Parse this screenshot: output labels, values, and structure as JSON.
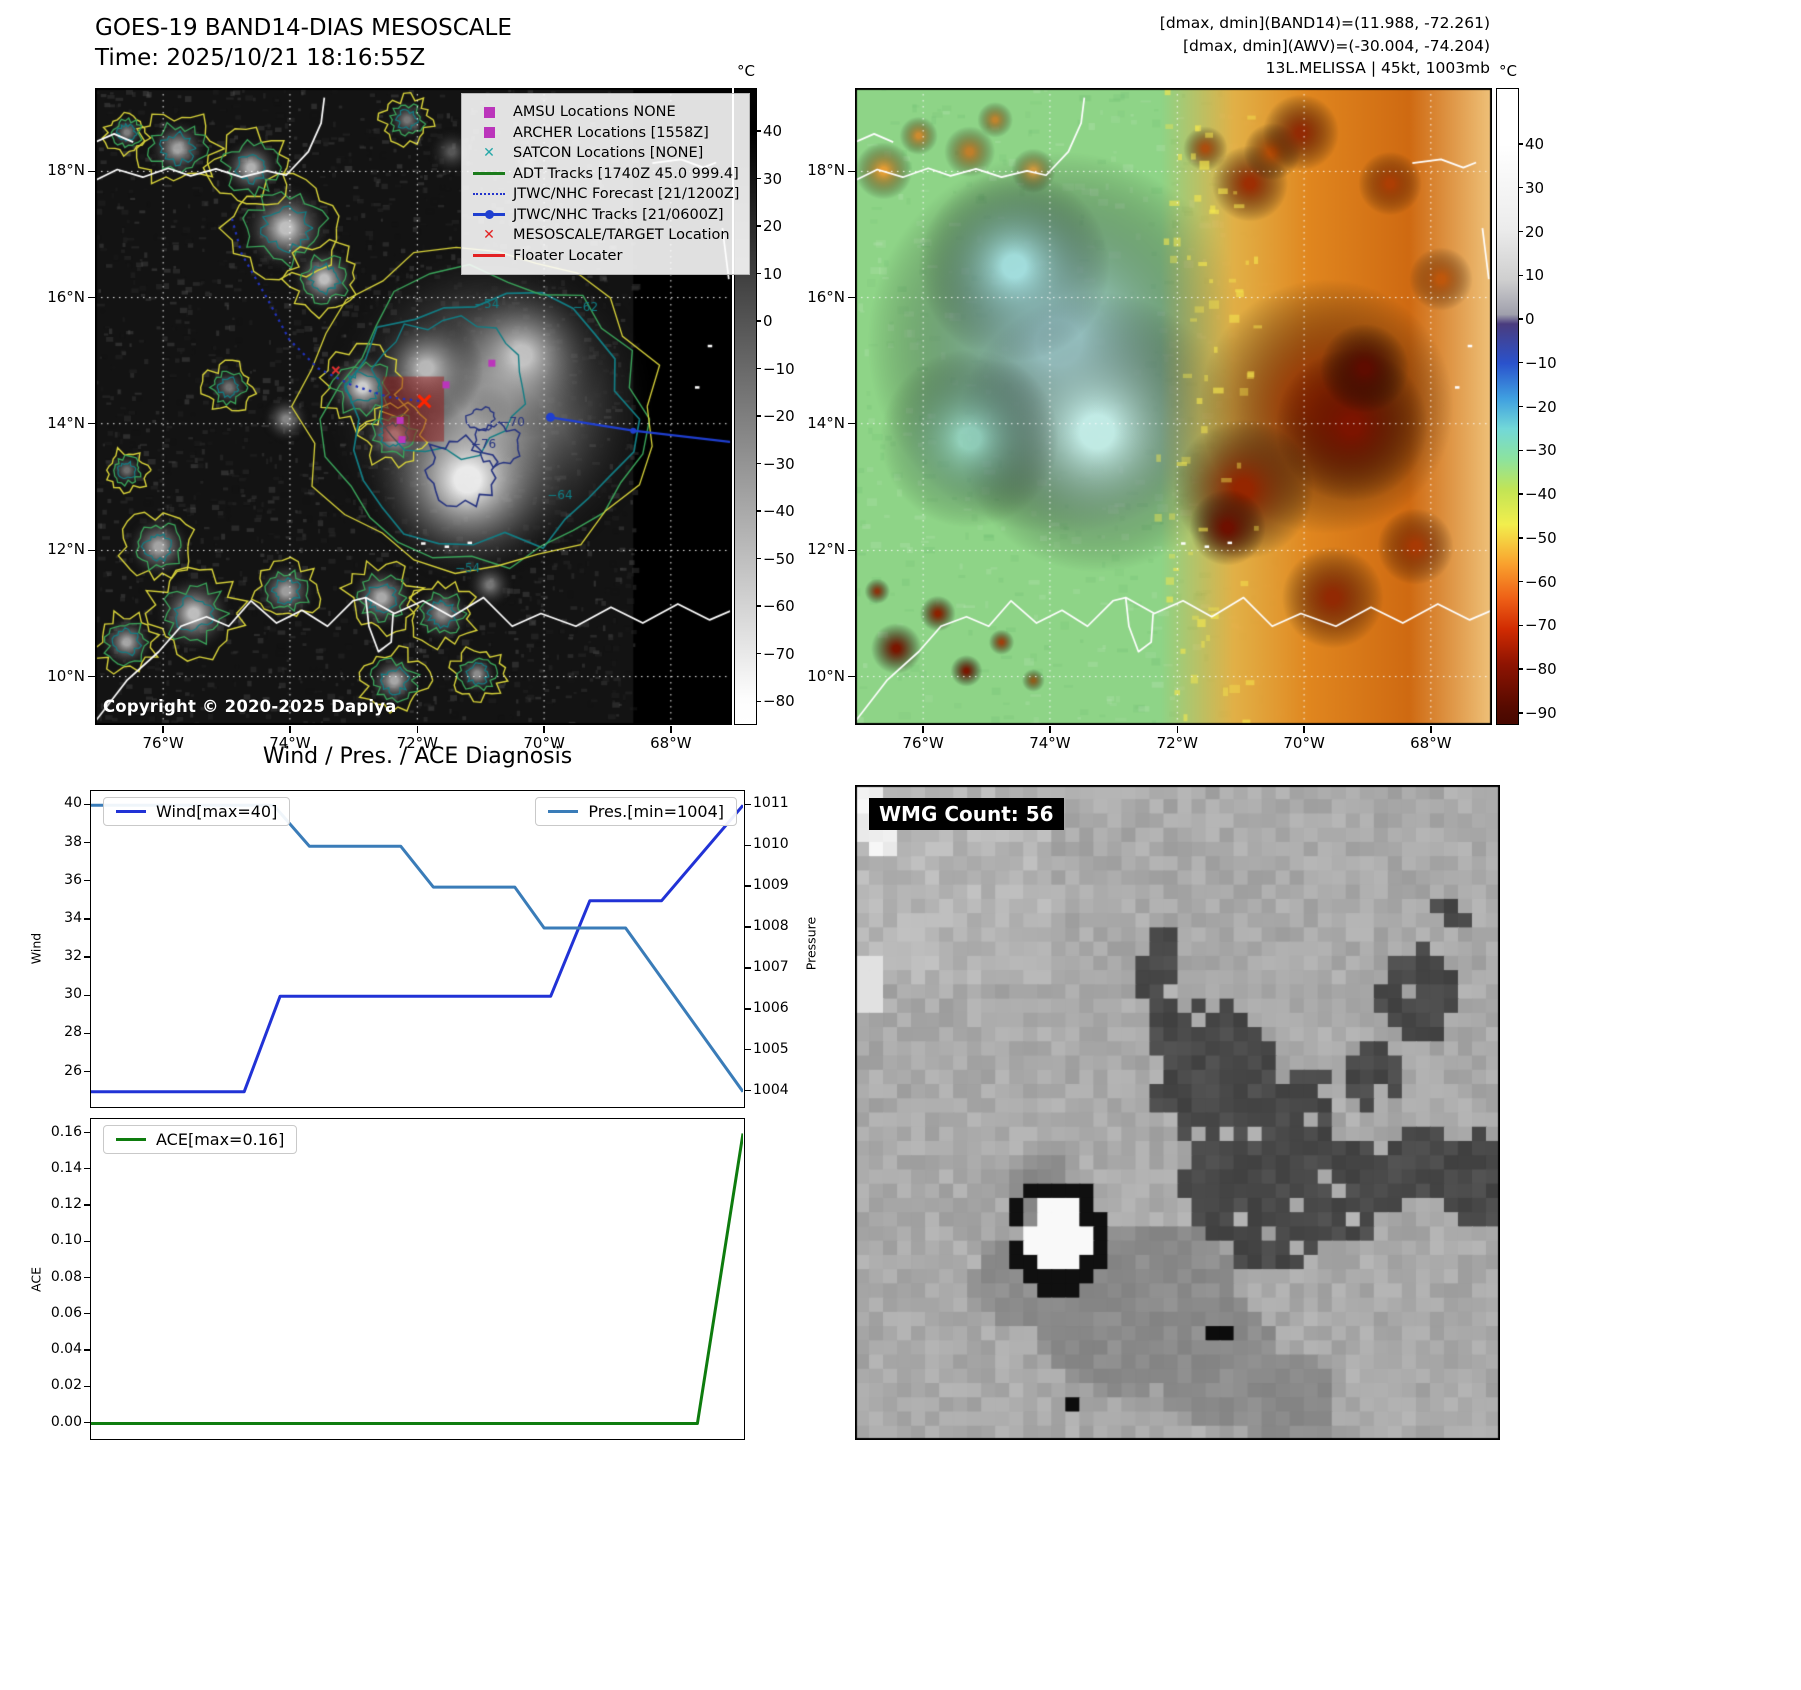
{
  "chart_data": [
    {
      "type": "line",
      "title": "Wind / Pres. / ACE Diagnosis",
      "xlabel": "",
      "ylabel_left": "Wind",
      "ylabel_right": "Pressure",
      "ylim_left": [
        24.25,
        40.75
      ],
      "ylim_right": [
        1003.65,
        1011.35
      ],
      "yticks_left": [
        26,
        28,
        30,
        32,
        34,
        36,
        38,
        40
      ],
      "yticks_right": [
        1004,
        1005,
        1006,
        1007,
        1008,
        1009,
        1010,
        1011
      ],
      "grid": false,
      "legend_position": "upper left / upper right",
      "series": [
        {
          "name": "Wind[max=40]",
          "axis": "left",
          "color": "#2132d6",
          "points": [
            [
              0,
              25
            ],
            [
              0.235,
              25
            ],
            [
              0.29,
              30
            ],
            [
              0.705,
              30
            ],
            [
              0.765,
              35
            ],
            [
              0.875,
              35
            ],
            [
              1,
              40
            ]
          ]
        },
        {
          "name": "Pres.[min=1004]",
          "axis": "right",
          "color": "#3a7cb8",
          "points": [
            [
              0,
              1011
            ],
            [
              0.28,
              1011
            ],
            [
              0.335,
              1010
            ],
            [
              0.475,
              1010
            ],
            [
              0.525,
              1009
            ],
            [
              0.65,
              1009
            ],
            [
              0.695,
              1008
            ],
            [
              0.82,
              1008
            ],
            [
              1,
              1004
            ]
          ]
        }
      ]
    },
    {
      "type": "line",
      "title": "",
      "xlabel": "",
      "ylabel": "ACE",
      "ylim": [
        -0.008,
        0.168
      ],
      "yticks": [
        0,
        0.02,
        0.04,
        0.06,
        0.08,
        0.1,
        0.12,
        0.14,
        0.16
      ],
      "grid": false,
      "legend_position": "upper left",
      "series": [
        {
          "name": "ACE[max=0.16]",
          "axis": "left",
          "color": "#0e7c0e",
          "points": [
            [
              0,
              0
            ],
            [
              0.93,
              0
            ],
            [
              1,
              0.16
            ]
          ]
        }
      ]
    }
  ],
  "band14": {
    "title": "GOES-19 BAND14-DIAS MESOSCALE",
    "time": "Time: 2025/10/21 18:16:55Z",
    "copyright": "Copyright © 2020-2025 Dapiya",
    "colorbar_unit": "°C",
    "colorbar_ticks": [
      40,
      30,
      20,
      10,
      0,
      -10,
      -20,
      -30,
      -40,
      -50,
      -60,
      -70,
      -80
    ],
    "lat_ticks": [
      "18°N",
      "16°N",
      "14°N",
      "12°N",
      "10°N"
    ],
    "lon_ticks": [
      "76°W",
      "74°W",
      "72°W",
      "70°W",
      "68°W"
    ],
    "contour_labels": [
      "-54",
      "-62",
      "-64",
      "-70",
      "-76"
    ],
    "legend_items": [
      {
        "marker": "square",
        "color": "#bb35bb",
        "label": "AMSU Locations NONE"
      },
      {
        "marker": "square",
        "color": "#bb35bb",
        "label": "ARCHER Locations [1558Z]"
      },
      {
        "marker": "x",
        "color": "#26a8a8",
        "label": "SATCON Locations [NONE]"
      },
      {
        "marker": "line",
        "color": "#1c7c1c",
        "label": "ADT Tracks [1740Z 45.0 999.4]"
      },
      {
        "marker": "dotted",
        "color": "#2233cc",
        "label": "JTWC/NHC Forecast [21/1200Z]"
      },
      {
        "marker": "line-dot",
        "color": "#1f3fd0",
        "label": "JTWC/NHC Tracks [21/0600Z]"
      },
      {
        "marker": "x",
        "color": "#e32222",
        "label": "MESOSCALE/TARGET Location"
      },
      {
        "marker": "line",
        "color": "#e32222",
        "label": "Floater Locater"
      }
    ]
  },
  "awv": {
    "header_lines": [
      "[dmax, dmin](BAND14)=(11.988, -72.261)",
      "[dmax, dmin](AWV)=(-30.004, -74.204)",
      "13L.MELISSA | 45kt, 1003mb"
    ],
    "colorbar_unit": "°C",
    "colorbar_ticks": [
      40,
      30,
      20,
      10,
      0,
      -10,
      -20,
      -30,
      -40,
      -50,
      -60,
      -70,
      -80,
      -90
    ],
    "lat_ticks": [
      "18°N",
      "16°N",
      "14°N",
      "12°N",
      "10°N"
    ],
    "lon_ticks": [
      "76°W",
      "74°W",
      "72°W",
      "70°W",
      "68°W"
    ]
  },
  "wmg": {
    "count_label": "WMG Count: 56"
  }
}
